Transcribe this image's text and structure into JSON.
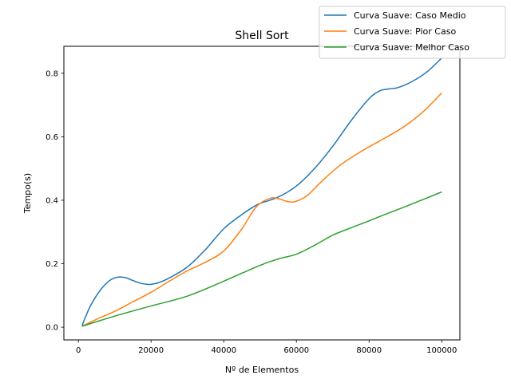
{
  "chart_data": {
    "type": "line",
    "title": "Shell Sort",
    "xlabel": "Nº de Elementos",
    "ylabel": "Tempo(s)",
    "xlim": [
      -4000,
      105000
    ],
    "ylim": [
      -0.04,
      0.885
    ],
    "xticks": [
      0,
      20000,
      40000,
      60000,
      80000,
      100000
    ],
    "xtick_labels": [
      "0",
      "20000",
      "40000",
      "60000",
      "80000",
      "100000"
    ],
    "yticks": [
      0.0,
      0.2,
      0.4,
      0.6,
      0.8
    ],
    "ytick_labels": [
      "0.0",
      "0.2",
      "0.4",
      "0.6",
      "0.8"
    ],
    "grid": false,
    "legend_position": "top-right",
    "series": [
      {
        "name": "Curva Suave: Caso Medio",
        "color": "#1f77b4",
        "x": [
          1000,
          3000,
          5000,
          7000,
          9000,
          11000,
          13000,
          15000,
          17000,
          19000,
          20000,
          22000,
          25000,
          30000,
          35000,
          40000,
          45000,
          48000,
          50000,
          55000,
          60000,
          65000,
          70000,
          75000,
          80000,
          83000,
          85000,
          88000,
          92000,
          96000,
          100000
        ],
        "y": [
          0.005,
          0.06,
          0.1,
          0.13,
          0.15,
          0.158,
          0.156,
          0.147,
          0.139,
          0.135,
          0.135,
          0.14,
          0.155,
          0.19,
          0.245,
          0.31,
          0.355,
          0.378,
          0.39,
          0.41,
          0.445,
          0.5,
          0.57,
          0.65,
          0.72,
          0.745,
          0.75,
          0.755,
          0.775,
          0.805,
          0.848
        ]
      },
      {
        "name": "Curva Suave: Pior Caso",
        "color": "#ff7f0e",
        "x": [
          1000,
          5000,
          10000,
          15000,
          20000,
          25000,
          30000,
          35000,
          40000,
          45000,
          48000,
          50000,
          53000,
          55000,
          58000,
          60000,
          63000,
          67000,
          72000,
          78000,
          85000,
          90000,
          95000,
          100000
        ],
        "y": [
          0.003,
          0.025,
          0.05,
          0.08,
          0.11,
          0.145,
          0.178,
          0.205,
          0.24,
          0.31,
          0.365,
          0.39,
          0.407,
          0.405,
          0.395,
          0.397,
          0.415,
          0.46,
          0.51,
          0.555,
          0.6,
          0.635,
          0.68,
          0.738
        ]
      },
      {
        "name": "Curva Suave: Melhor Caso",
        "color": "#2ca02c",
        "x": [
          1000,
          10000,
          20000,
          30000,
          40000,
          50000,
          55000,
          60000,
          65000,
          70000,
          75000,
          80000,
          85000,
          90000,
          95000,
          100000
        ],
        "y": [
          0.003,
          0.035,
          0.067,
          0.098,
          0.145,
          0.195,
          0.215,
          0.23,
          0.258,
          0.29,
          0.313,
          0.335,
          0.358,
          0.38,
          0.403,
          0.426
        ]
      }
    ]
  }
}
